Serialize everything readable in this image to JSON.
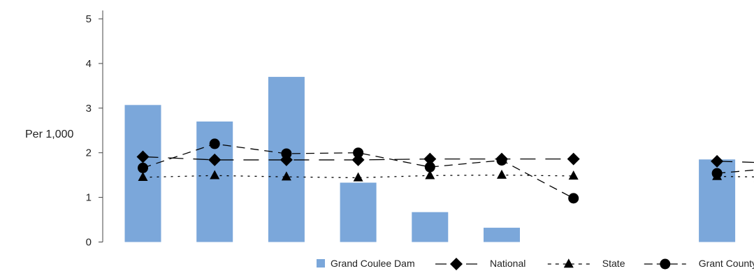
{
  "chart_data": {
    "type": "bar",
    "title": "",
    "xlabel": "",
    "ylabel": "Per 1,000",
    "ylim": [
      0,
      5
    ],
    "yticks": [
      "0",
      "1",
      "2",
      "3",
      "4",
      "5"
    ],
    "categories": [
      "",
      "",
      "",
      "",
      "",
      "",
      "",
      "",
      "",
      ""
    ],
    "series": [
      {
        "name": "Grand Coulee Dam",
        "kind": "bar",
        "color": "#7ba7da",
        "values": [
          3.07,
          2.7,
          3.7,
          1.33,
          0.67,
          0.32,
          null,
          null,
          1.85,
          null
        ]
      },
      {
        "name": "National",
        "kind": "line",
        "marker": "diamond",
        "dash": "long",
        "values": [
          1.91,
          1.84,
          1.84,
          1.84,
          1.86,
          1.86,
          1.86,
          null,
          1.81,
          1.76
        ],
        "extends_right": 1.82
      },
      {
        "name": "State",
        "kind": "line",
        "marker": "triangle",
        "dash": "dotted",
        "values": [
          1.45,
          1.49,
          1.46,
          1.44,
          1.49,
          1.5,
          1.48,
          null,
          1.47,
          1.45
        ],
        "extends_right": 1.34
      },
      {
        "name": "Grant County",
        "kind": "line",
        "marker": "circle",
        "dash": "mixed",
        "values": [
          1.66,
          2.2,
          1.98,
          2.0,
          1.68,
          1.83,
          0.98,
          null,
          1.54,
          1.68
        ],
        "extends_right": 1.32
      }
    ],
    "grid": false,
    "legend_position": "bottom-right"
  }
}
